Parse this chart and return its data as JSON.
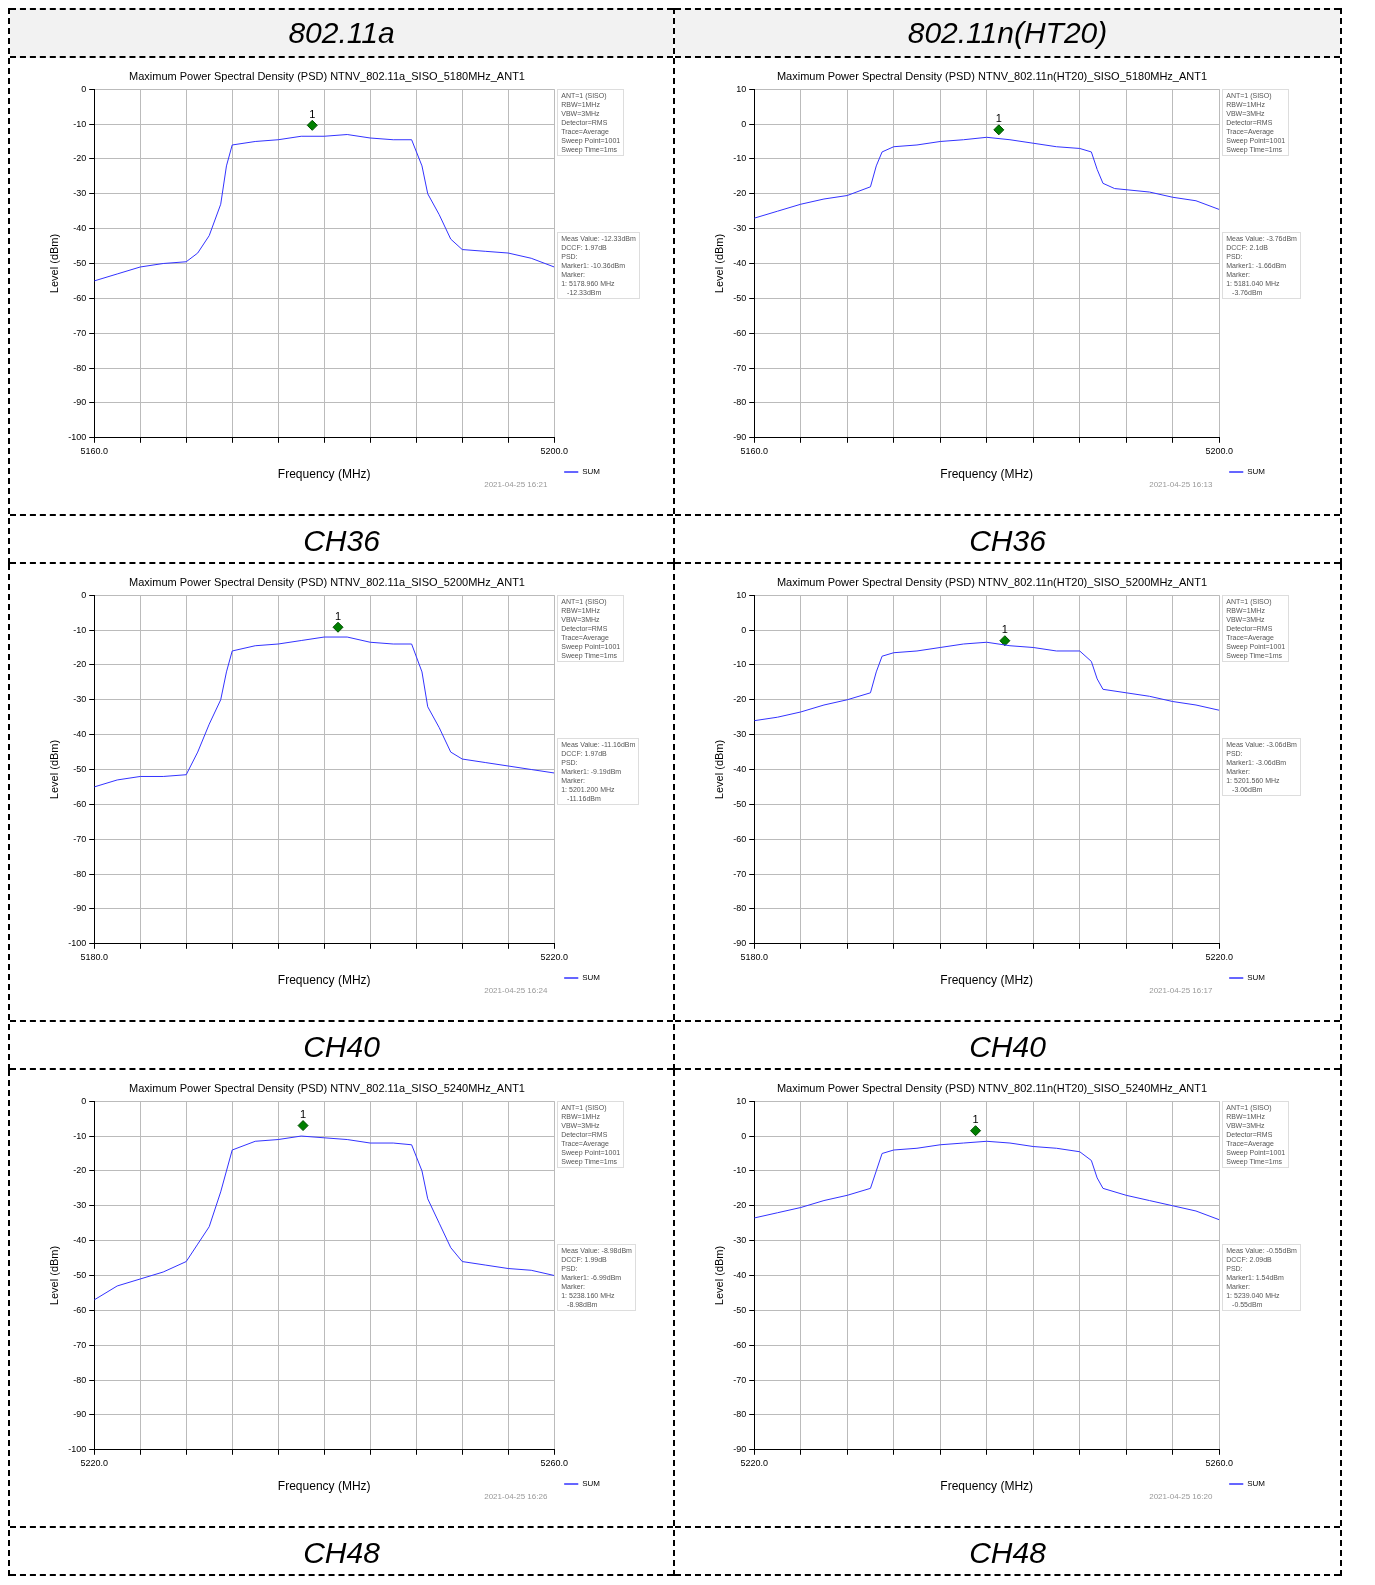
{
  "chart_data": [
    {
      "type": "line",
      "title": "Maximum Power Spectral Density (PSD) NTNV_802.11a_SISO_5180MHz_ANT1",
      "xlabel": "Frequency (MHz)",
      "ylabel": "Level (dBm)",
      "xlim": [
        5160,
        5200
      ],
      "ylim": [
        -100,
        0
      ],
      "xticks": [
        {
          "value": 5160,
          "label": "5160.0"
        },
        {
          "value": 5164,
          "label": null
        },
        {
          "value": 5168,
          "label": null
        },
        {
          "value": 5172,
          "label": null
        },
        {
          "value": 5176,
          "label": null
        },
        {
          "value": 5180,
          "label": null
        },
        {
          "value": 5184,
          "label": null
        },
        {
          "value": 5188,
          "label": null
        },
        {
          "value": 5192,
          "label": null
        },
        {
          "value": 5196,
          "label": null
        },
        {
          "value": 5200,
          "label": "5200.0"
        }
      ],
      "yticks": [
        0,
        -10,
        -20,
        -30,
        -40,
        -50,
        -60,
        -70,
        -80,
        -90,
        -100
      ],
      "grid": true,
      "legend": "bottom right",
      "series": [
        {
          "name": "SUM",
          "color": "#3333ff",
          "x": [
            5160,
            5162,
            5164,
            5166,
            5168,
            5169,
            5170,
            5171,
            5171.5,
            5172,
            5174,
            5176,
            5178,
            5180,
            5182,
            5184,
            5186,
            5187.6,
            5188.5,
            5189,
            5190,
            5191,
            5192,
            5194,
            5196,
            5198,
            5200
          ],
          "values": [
            -55,
            -53,
            -51,
            -50,
            -49.5,
            -47,
            -42,
            -33,
            -22,
            -16,
            -15,
            -14.5,
            -13.5,
            -13.5,
            -13,
            -14,
            -14.5,
            -14.5,
            -22,
            -30,
            -36,
            -43,
            -46,
            -46.5,
            -47,
            -48.5,
            -51
          ]
        },
        {
          "type": "scatter",
          "marker": "diamond",
          "color": "#008000",
          "x": [
            5178.96
          ],
          "values": [
            -10.36
          ]
        }
      ],
      "annotations": [
        "ANT=1 (SISO)\nRBW=1MHz\nVBW=3MHz\nDetector=RMS\nTrace=Average\nSweep Point=1001\nSweep Time=1ms",
        "Meas Value: -12.33dBm\nDCCF: 1.97dB\nPSD:\nMarker1: -10.36dBm\nMarker:\n1: 5178.960 MHz\n   -12.33dBm",
        "2021-04-25 16:21",
        "CH36",
        "802.11a",
        {
          "text": "1",
          "x": 5178.96,
          "y": -10.36
        }
      ]
    },
    {
      "type": "line",
      "title": "Maximum Power Spectral Density (PSD) NTNV_802.11n(HT20)_SISO_5180MHz_ANT1",
      "xlabel": "Frequency (MHz)",
      "ylabel": "Level (dBm)",
      "xlim": [
        5160,
        5200
      ],
      "ylim": [
        -90,
        10
      ],
      "xticks": [
        {
          "value": 5160,
          "label": "5160.0"
        },
        {
          "value": 5164,
          "label": null
        },
        {
          "value": 5168,
          "label": null
        },
        {
          "value": 5172,
          "label": null
        },
        {
          "value": 5176,
          "label": null
        },
        {
          "value": 5180,
          "label": null
        },
        {
          "value": 5184,
          "label": null
        },
        {
          "value": 5188,
          "label": null
        },
        {
          "value": 5192,
          "label": null
        },
        {
          "value": 5196,
          "label": null
        },
        {
          "value": 5200,
          "label": "5200.0"
        }
      ],
      "yticks": [
        10,
        0,
        -10,
        -20,
        -30,
        -40,
        -50,
        -60,
        -70,
        -80,
        -90
      ],
      "grid": true,
      "legend": "bottom right",
      "series": [
        {
          "name": "SUM",
          "color": "#3333ff",
          "x": [
            5160,
            5162,
            5164,
            5166,
            5168,
            5170,
            5170.5,
            5171,
            5172,
            5174,
            5176,
            5178,
            5180,
            5182,
            5184,
            5186,
            5188,
            5189,
            5189.5,
            5190,
            5191,
            5194,
            5196,
            5198,
            5200
          ],
          "values": [
            -27,
            -25,
            -23,
            -21.5,
            -20.5,
            -18,
            -12,
            -8,
            -6.5,
            -6,
            -5,
            -4.5,
            -3.8,
            -4.5,
            -5.5,
            -6.5,
            -7,
            -8,
            -13,
            -17,
            -18.5,
            -19.5,
            -21,
            -22,
            -24.5
          ]
        },
        {
          "type": "scatter",
          "marker": "diamond",
          "color": "#008000",
          "x": [
            5181.04
          ],
          "values": [
            -1.66
          ]
        }
      ],
      "annotations": [
        "ANT=1 (SISO)\nRBW=1MHz\nVBW=3MHz\nDetector=RMS\nTrace=Average\nSweep Point=1001\nSweep Time=1ms",
        "Meas Value: -3.76dBm\nDCCF: 2.1dB\nPSD:\nMarker1: -1.66dBm\nMarker:\n1: 5181.040 MHz\n   -3.76dBm",
        "2021-04-25 16:13",
        "CH36",
        "802.11n(HT20)",
        {
          "text": "1",
          "x": 5181.04,
          "y": -1.66
        }
      ]
    },
    {
      "type": "line",
      "title": "Maximum Power Spectral Density (PSD) NTNV_802.11a_SISO_5200MHz_ANT1",
      "xlabel": "Frequency (MHz)",
      "ylabel": "Level (dBm)",
      "xlim": [
        5180,
        5220
      ],
      "ylim": [
        -100,
        0
      ],
      "xticks": [
        {
          "value": 5180,
          "label": "5180.0"
        },
        {
          "value": 5184,
          "label": null
        },
        {
          "value": 5188,
          "label": null
        },
        {
          "value": 5192,
          "label": null
        },
        {
          "value": 5196,
          "label": null
        },
        {
          "value": 5200,
          "label": null
        },
        {
          "value": 5204,
          "label": null
        },
        {
          "value": 5208,
          "label": null
        },
        {
          "value": 5212,
          "label": null
        },
        {
          "value": 5216,
          "label": null
        },
        {
          "value": 5220,
          "label": "5220.0"
        }
      ],
      "yticks": [
        0,
        -10,
        -20,
        -30,
        -40,
        -50,
        -60,
        -70,
        -80,
        -90,
        -100
      ],
      "grid": true,
      "legend": "bottom right",
      "series": [
        {
          "name": "SUM",
          "color": "#3333ff",
          "x": [
            5180,
            5182,
            5184,
            5186,
            5188,
            5189,
            5190,
            5191,
            5191.5,
            5192,
            5194,
            5196,
            5198,
            5200,
            5202,
            5204,
            5206,
            5207.6,
            5208.5,
            5209,
            5210,
            5211,
            5212,
            5214,
            5216,
            5218,
            5220
          ],
          "values": [
            -55,
            -53,
            -52,
            -52,
            -51.5,
            -45,
            -37,
            -30,
            -22,
            -16,
            -14.5,
            -14,
            -13,
            -12,
            -12,
            -13.5,
            -14,
            -14,
            -22,
            -32,
            -38,
            -45,
            -47,
            -48,
            -49,
            -50,
            -51
          ]
        },
        {
          "type": "scatter",
          "marker": "diamond",
          "color": "#008000",
          "x": [
            5201.2
          ],
          "values": [
            -9.19
          ]
        }
      ],
      "annotations": [
        "ANT=1 (SISO)\nRBW=1MHz\nVBW=3MHz\nDetector=RMS\nTrace=Average\nSweep Point=1001\nSweep Time=1ms",
        "Meas Value: -11.16dBm\nDCCF: 1.97dB\nPSD:\nMarker1: -9.19dBm\nMarker:\n1: 5201.200 MHz\n   -11.16dBm",
        "2021-04-25 16:24",
        "CH40",
        {
          "text": "1",
          "x": 5201.2,
          "y": -9.19
        }
      ]
    },
    {
      "type": "line",
      "title": "Maximum Power Spectral Density (PSD) NTNV_802.11n(HT20)_SISO_5200MHz_ANT1",
      "xlabel": "Frequency (MHz)",
      "ylabel": "Level (dBm)",
      "xlim": [
        5180,
        5220
      ],
      "ylim": [
        -90,
        10
      ],
      "xticks": [
        {
          "value": 5180,
          "label": "5180.0"
        },
        {
          "value": 5184,
          "label": null
        },
        {
          "value": 5188,
          "label": null
        },
        {
          "value": 5192,
          "label": null
        },
        {
          "value": 5196,
          "label": null
        },
        {
          "value": 5200,
          "label": null
        },
        {
          "value": 5204,
          "label": null
        },
        {
          "value": 5208,
          "label": null
        },
        {
          "value": 5212,
          "label": null
        },
        {
          "value": 5216,
          "label": null
        },
        {
          "value": 5220,
          "label": "5220.0"
        }
      ],
      "yticks": [
        10,
        0,
        -10,
        -20,
        -30,
        -40,
        -50,
        -60,
        -70,
        -80,
        -90
      ],
      "grid": true,
      "legend": "bottom right",
      "series": [
        {
          "name": "SUM",
          "color": "#3333ff",
          "x": [
            5180,
            5182,
            5184,
            5186,
            5188,
            5190,
            5190.5,
            5191,
            5192,
            5194,
            5196,
            5198,
            5200,
            5202,
            5204,
            5206,
            5208,
            5209,
            5209.5,
            5210,
            5212,
            5214,
            5216,
            5218,
            5220
          ],
          "values": [
            -26,
            -25,
            -23.5,
            -21.5,
            -20,
            -18,
            -12,
            -7.5,
            -6.5,
            -6,
            -5,
            -4,
            -3.5,
            -4.5,
            -5,
            -6,
            -6,
            -9,
            -14,
            -17,
            -18,
            -19,
            -20.5,
            -21.5,
            -23
          ]
        },
        {
          "type": "scatter",
          "marker": "diamond",
          "color": "#008000",
          "x": [
            5201.56
          ],
          "values": [
            -3.06
          ]
        }
      ],
      "annotations": [
        "ANT=1 (SISO)\nRBW=1MHz\nVBW=3MHz\nDetector=RMS\nTrace=Average\nSweep Point=1001\nSweep Time=1ms",
        "Meas Value: -3.06dBm\nPSD:\nMarker1: -3.06dBm\nMarker:\n1: 5201.560 MHz\n   -3.06dBm",
        "2021-04-25 16:17",
        "CH40",
        {
          "text": "1",
          "x": 5201.56,
          "y": -3.06
        }
      ]
    },
    {
      "type": "line",
      "title": "Maximum Power Spectral Density (PSD) NTNV_802.11a_SISO_5240MHz_ANT1",
      "xlabel": "Frequency (MHz)",
      "ylabel": "Level (dBm)",
      "xlim": [
        5220,
        5260
      ],
      "ylim": [
        -100,
        0
      ],
      "xticks": [
        {
          "value": 5220,
          "label": "5220.0"
        },
        {
          "value": 5224,
          "label": null
        },
        {
          "value": 5228,
          "label": null
        },
        {
          "value": 5232,
          "label": null
        },
        {
          "value": 5236,
          "label": null
        },
        {
          "value": 5240,
          "label": null
        },
        {
          "value": 5244,
          "label": null
        },
        {
          "value": 5248,
          "label": null
        },
        {
          "value": 5252,
          "label": null
        },
        {
          "value": 5256,
          "label": null
        },
        {
          "value": 5260,
          "label": "5260.0"
        }
      ],
      "yticks": [
        0,
        -10,
        -20,
        -30,
        -40,
        -50,
        -60,
        -70,
        -80,
        -90,
        -100
      ],
      "grid": true,
      "legend": "bottom right",
      "series": [
        {
          "name": "SUM",
          "color": "#3333ff",
          "x": [
            5220,
            5222,
            5224,
            5226,
            5228,
            5229,
            5230,
            5231,
            5232,
            5234,
            5236,
            5238,
            5240,
            5242,
            5244,
            5246,
            5247.6,
            5248.5,
            5249,
            5250,
            5251,
            5252,
            5254,
            5256,
            5258,
            5260
          ],
          "values": [
            -57,
            -53,
            -51,
            -49,
            -46,
            -41,
            -36,
            -26,
            -14,
            -11.5,
            -11,
            -10,
            -10.5,
            -11,
            -12,
            -12,
            -12.5,
            -20,
            -28,
            -35,
            -42,
            -46,
            -47,
            -48,
            -48.5,
            -50
          ]
        },
        {
          "type": "scatter",
          "marker": "diamond",
          "color": "#008000",
          "x": [
            5238.16
          ],
          "values": [
            -6.99
          ]
        }
      ],
      "annotations": [
        "ANT=1 (SISO)\nRBW=1MHz\nVBW=3MHz\nDetector=RMS\nTrace=Average\nSweep Point=1001\nSweep Time=1ms",
        "Meas Value: -8.98dBm\nDCCF: 1.99dB\nPSD:\nMarker1: -6.99dBm\nMarker:\n1: 5238.160 MHz\n   -8.98dBm",
        "2021-04-25 16:26",
        "CH48",
        {
          "text": "1",
          "x": 5238.16,
          "y": -6.99
        }
      ]
    },
    {
      "type": "line",
      "title": "Maximum Power Spectral Density (PSD) NTNV_802.11n(HT20)_SISO_5240MHz_ANT1",
      "xlabel": "Frequency (MHz)",
      "ylabel": "Level (dBm)",
      "xlim": [
        5220,
        5260
      ],
      "ylim": [
        -90,
        10
      ],
      "xticks": [
        {
          "value": 5220,
          "label": "5220.0"
        },
        {
          "value": 5224,
          "label": null
        },
        {
          "value": 5228,
          "label": null
        },
        {
          "value": 5232,
          "label": null
        },
        {
          "value": 5236,
          "label": null
        },
        {
          "value": 5240,
          "label": null
        },
        {
          "value": 5244,
          "label": null
        },
        {
          "value": 5248,
          "label": null
        },
        {
          "value": 5252,
          "label": null
        },
        {
          "value": 5256,
          "label": null
        },
        {
          "value": 5260,
          "label": "5260.0"
        }
      ],
      "yticks": [
        10,
        0,
        -10,
        -20,
        -30,
        -40,
        -50,
        -60,
        -70,
        -80,
        -90
      ],
      "grid": true,
      "legend": "bottom right",
      "series": [
        {
          "name": "SUM",
          "color": "#3333ff",
          "x": [
            5220,
            5222,
            5224,
            5226,
            5228,
            5230,
            5230.5,
            5231,
            5232,
            5234,
            5236,
            5238,
            5240,
            5242,
            5244,
            5246,
            5248,
            5249,
            5249.5,
            5250,
            5252,
            5254,
            5256,
            5258,
            5260
          ],
          "values": [
            -23.5,
            -22,
            -20.5,
            -18.5,
            -17,
            -15,
            -10,
            -5,
            -4,
            -3.5,
            -2.5,
            -2,
            -1.5,
            -2,
            -3,
            -3.5,
            -4.5,
            -7,
            -12,
            -15,
            -17,
            -18.5,
            -20,
            -21.5,
            -24
          ]
        },
        {
          "type": "scatter",
          "marker": "diamond",
          "color": "#008000",
          "x": [
            5239.04
          ],
          "values": [
            1.54
          ]
        }
      ],
      "annotations": [
        "ANT=1 (SISO)\nRBW=1MHz\nVBW=3MHz\nDetector=RMS\nTrace=Average\nSweep Point=1001\nSweep Time=1ms",
        "Meas Value: -0.55dBm\nDCCF: 2.09dB\nPSD:\nMarker1: 1.54dBm\nMarker:\n1: 5239.040 MHz\n   -0.55dBm",
        "2021-04-25 16:20",
        "CH48",
        {
          "text": "1",
          "x": 5239.04,
          "y": 1.54
        }
      ]
    }
  ]
}
